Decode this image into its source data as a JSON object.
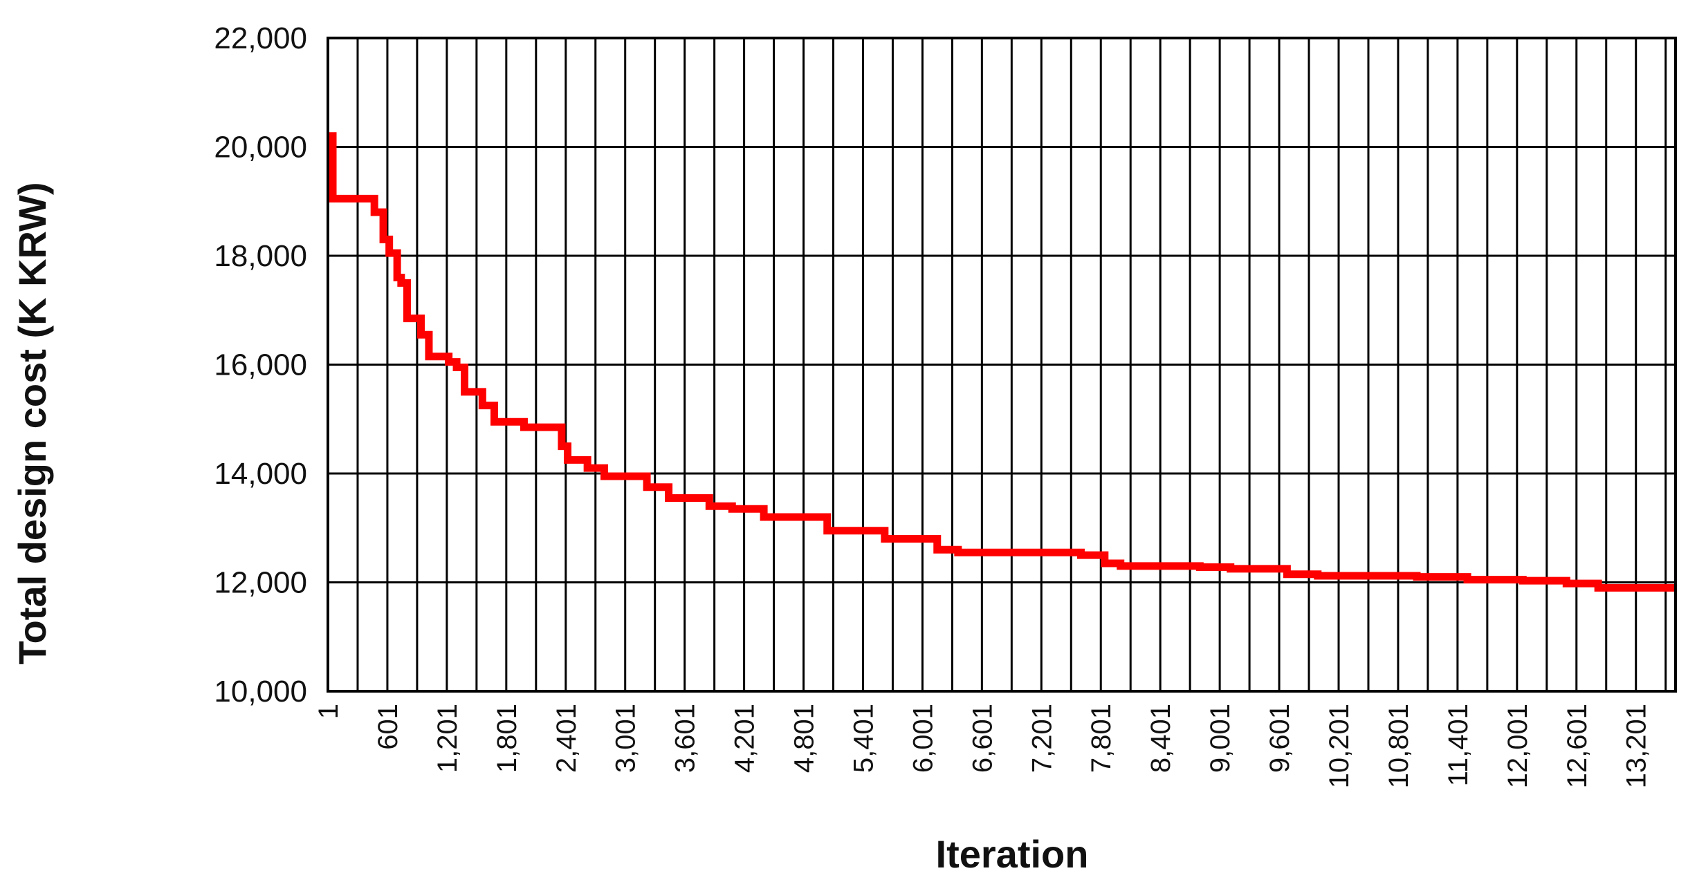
{
  "chart_data": {
    "type": "line",
    "title": "",
    "xlabel": "Iteration",
    "ylabel": "Total design cost (K KRW)",
    "xlim": [
      1,
      13601
    ],
    "ylim": [
      10000,
      22000
    ],
    "y_ticks": [
      10000,
      12000,
      14000,
      16000,
      18000,
      20000,
      22000
    ],
    "y_tick_labels": [
      "10,000",
      "12,000",
      "14,000",
      "16,000",
      "18,000",
      "20,000",
      "22,000"
    ],
    "x_tick_labels": [
      "1",
      "601",
      "1,201",
      "1,801",
      "2,401",
      "3,001",
      "3,601",
      "4,201",
      "4,801",
      "5,401",
      "6,001",
      "6,601",
      "7,201",
      "7,801",
      "8,401",
      "9,001",
      "9,601",
      "10,201",
      "10,801",
      "11,401",
      "12,001",
      "12,601",
      "13,201"
    ],
    "x_gridline_interval": 300,
    "grid": true,
    "legend": "none",
    "series": [
      {
        "color": "#ff0000",
        "step": true,
        "x": [
          1,
          50,
          430,
          470,
          560,
          620,
          700,
          740,
          800,
          940,
          1020,
          1220,
          1300,
          1380,
          1560,
          1680,
          1980,
          2120,
          2360,
          2420,
          2620,
          2790,
          3220,
          3440,
          3850,
          4080,
          4400,
          5040,
          5620,
          6150,
          6360,
          6600,
          7600,
          7840,
          8000,
          8800,
          9110,
          9680,
          9990,
          10990,
          11500,
          12060,
          12500,
          12820,
          13601
        ],
        "y": [
          20200,
          19050,
          19050,
          18800,
          18300,
          18050,
          17600,
          17500,
          16850,
          16550,
          16150,
          16050,
          15950,
          15500,
          15250,
          14950,
          14850,
          14850,
          14500,
          14250,
          14100,
          13950,
          13750,
          13550,
          13400,
          13350,
          13200,
          12950,
          12800,
          12600,
          12550,
          12550,
          12500,
          12350,
          12300,
          12280,
          12250,
          12150,
          12120,
          12100,
          12050,
          12030,
          11980,
          11900,
          11900
        ]
      }
    ]
  }
}
